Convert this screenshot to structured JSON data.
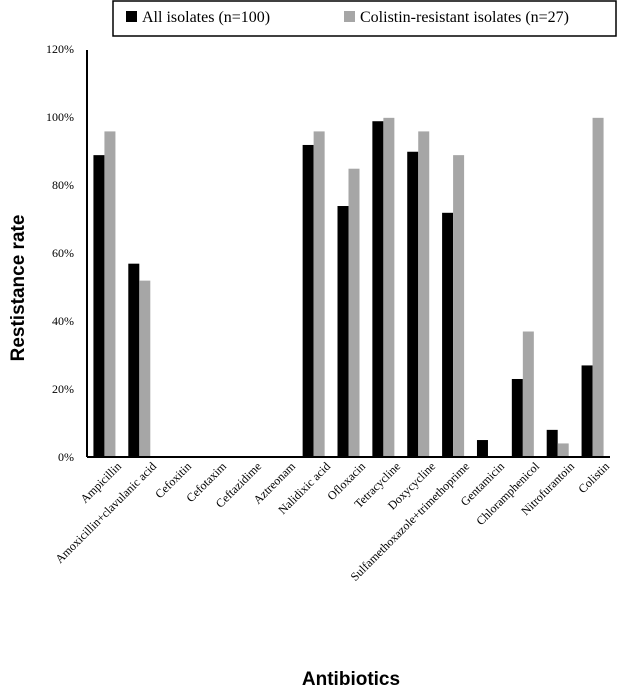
{
  "chart_data": {
    "type": "bar",
    "title": "",
    "xlabel": "Antibiotics",
    "ylabel": "Restistance rate",
    "ylim": [
      0,
      120
    ],
    "yticks": [
      "0%",
      "20%",
      "40%",
      "60%",
      "80%",
      "100%",
      "120%"
    ],
    "legend_position": "top",
    "grid": false,
    "categories": [
      "Ampicillin",
      "Amoxicillin+clavulanic acid",
      "Cefoxitin",
      "Cefotaxim",
      "Ceftazidime",
      "Aztreonam",
      "Nalidixic acid",
      "Ofloxacin",
      "Tetracycline",
      "Doxycycline",
      "Sulfamethoxazole+trimethoprime",
      "Gentamicin",
      "Chloramphenicol",
      "Nitrofurantoin",
      "Colistin"
    ],
    "series": [
      {
        "name": "All isolates (n=100)",
        "color": "#000000",
        "values": [
          89,
          57,
          0,
          0,
          0,
          0,
          92,
          74,
          99,
          90,
          72,
          5,
          23,
          8,
          27
        ]
      },
      {
        "name": "Colistin-resistant isolates (n=27)",
        "color": "#a6a6a6",
        "values": [
          96,
          52,
          0,
          0,
          0,
          0,
          96,
          85,
          100,
          96,
          89,
          0,
          37,
          4,
          100
        ]
      }
    ]
  }
}
